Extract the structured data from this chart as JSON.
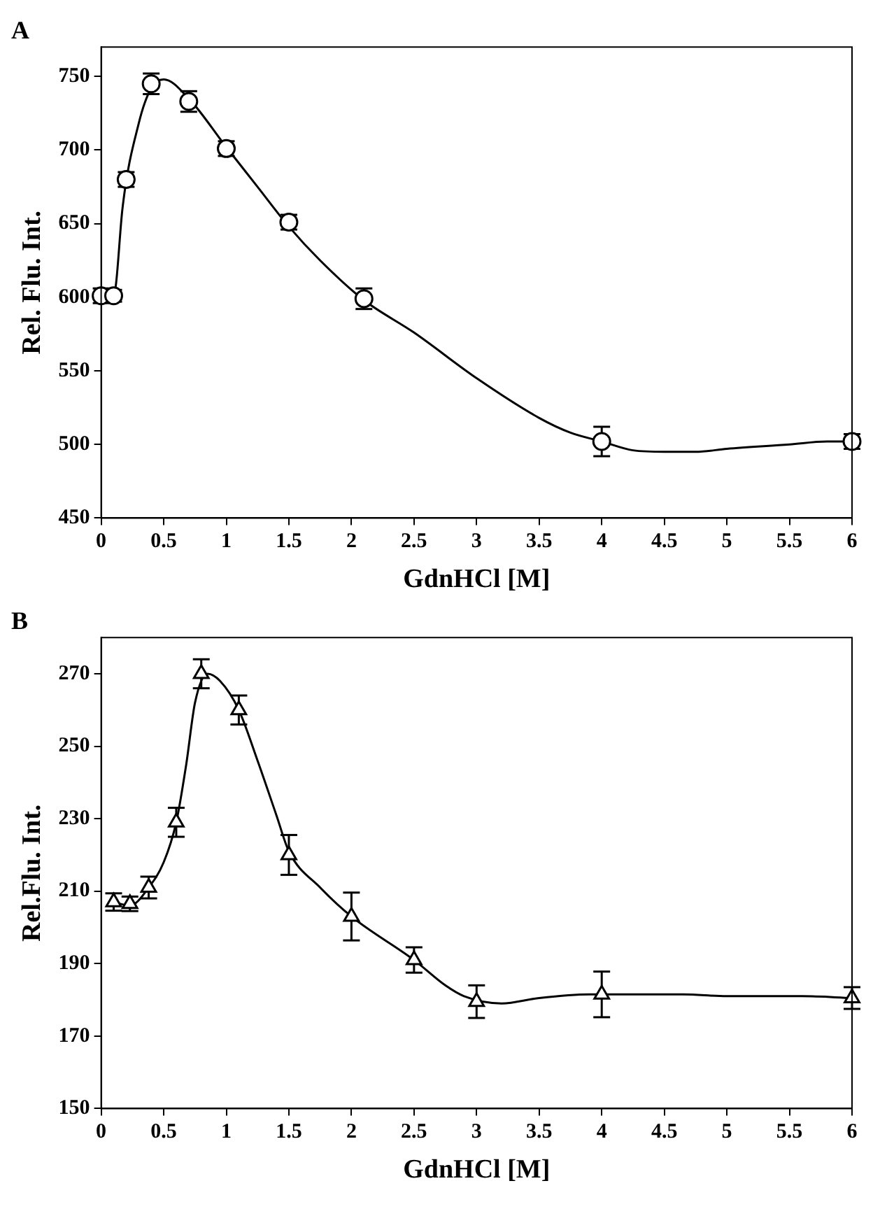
{
  "chart_data": [
    {
      "type": "scatter",
      "title": "A",
      "xlabel": "GdnHCl [M]",
      "ylabel": "Rel. Flu. Int.",
      "xlim": [
        0,
        6
      ],
      "xticks": [
        0,
        0.5,
        1,
        1.5,
        2,
        2.5,
        3,
        3.5,
        4,
        4.5,
        5,
        5.5,
        6
      ],
      "ylim": [
        450,
        770
      ],
      "yticks": [
        450,
        500,
        550,
        600,
        650,
        700,
        750
      ],
      "grid": false,
      "legend": false,
      "series": [
        {
          "type": "scatter",
          "marker": "circle",
          "color": "#000000",
          "x": [
            0,
            0.1,
            0.2,
            0.4,
            0.7,
            1,
            1.5,
            2.1,
            4,
            6
          ],
          "values": [
            601,
            601,
            680,
            745,
            733,
            701,
            651,
            599,
            502,
            502
          ],
          "errors": [
            5,
            4,
            5,
            7,
            7,
            5,
            5,
            7,
            10,
            5
          ]
        },
        {
          "type": "line",
          "marker": "none",
          "line_style": "solid",
          "color": "#000000",
          "x": [
            0,
            0.1,
            0.12,
            0.17,
            0.3,
            0.4,
            0.5,
            0.7,
            1,
            1.25,
            1.5,
            1.75,
            2.1,
            2.5,
            3,
            3.5,
            3.75,
            4,
            4.25,
            4.5,
            4.75,
            5,
            5.5,
            5.8,
            6
          ],
          "values": [
            601,
            601,
            610,
            660,
            718,
            742,
            748,
            735,
            702,
            675,
            648,
            625,
            598,
            576,
            545,
            518,
            508,
            502,
            496,
            495,
            495,
            497,
            500,
            502,
            502
          ]
        }
      ]
    },
    {
      "type": "scatter",
      "title": "B",
      "xlabel": "GdnHCl [M]",
      "ylabel": "Rel.Flu. Int.",
      "xlim": [
        0,
        6
      ],
      "xticks": [
        0,
        0.5,
        1,
        1.5,
        2,
        2.5,
        3,
        3.5,
        4,
        4.5,
        5,
        5.5,
        6
      ],
      "ylim": [
        150,
        280
      ],
      "yticks": [
        150,
        170,
        190,
        210,
        230,
        250,
        270
      ],
      "grid": false,
      "legend": false,
      "series": [
        {
          "type": "scatter",
          "marker": "triangle",
          "color": "#000000",
          "x": [
            0.1,
            0.23,
            0.38,
            0.6,
            0.8,
            1.1,
            1.5,
            2,
            2.5,
            3,
            4,
            6
          ],
          "values": [
            207,
            206.5,
            211,
            229,
            270,
            260,
            220,
            203,
            191,
            179.5,
            181.5,
            180.5
          ],
          "errors": [
            2.4,
            2,
            3,
            4,
            4,
            4,
            5.5,
            6.6,
            3.5,
            4.5,
            6.3,
            3
          ]
        },
        {
          "type": "line",
          "marker": "none",
          "line_style": "solid",
          "color": "#000000",
          "x": [
            0.1,
            0.23,
            0.38,
            0.5,
            0.6,
            0.68,
            0.75,
            0.85,
            0.95,
            1.1,
            1.25,
            1.4,
            1.5,
            1.75,
            2,
            2.5,
            2.75,
            2.9,
            3.2,
            3.5,
            3.9,
            4.65,
            5,
            5.6,
            6
          ],
          "values": [
            207,
            206,
            211,
            218,
            229,
            245,
            262,
            270,
            268,
            260,
            246,
            231,
            221,
            211,
            203,
            191,
            184,
            181,
            179,
            180.5,
            181.5,
            181.5,
            181,
            181,
            180.5
          ]
        }
      ]
    }
  ]
}
